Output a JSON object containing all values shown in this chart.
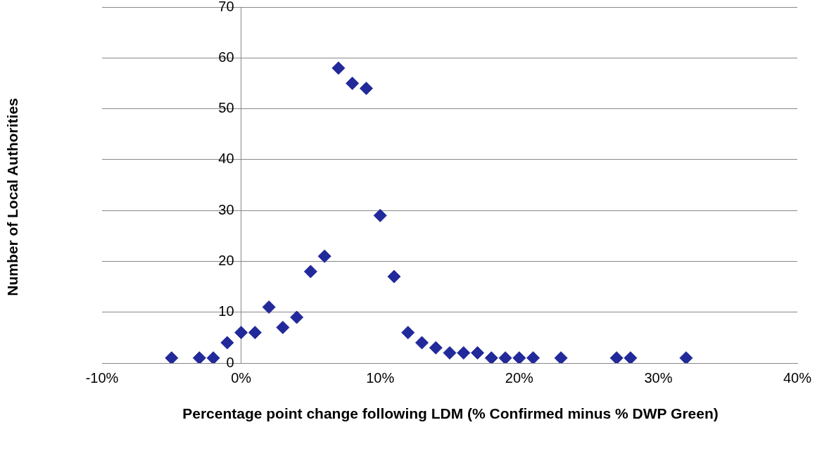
{
  "chart_data": {
    "type": "scatter",
    "xlabel": "Percentage point change following LDM (% Confirmed minus % DWP Green)",
    "ylabel": "Number of Local Authorities",
    "series": [
      {
        "color": "#22299a",
        "x": [
          -5,
          -3,
          -2,
          -1,
          0,
          1,
          2,
          3,
          4,
          5,
          6,
          7,
          8,
          9,
          10,
          11,
          12,
          13,
          14,
          15,
          16,
          17,
          18,
          19,
          20,
          21,
          23,
          27,
          28,
          32
        ],
        "values": [
          1,
          1,
          1,
          4,
          6,
          6,
          11,
          7,
          9,
          18,
          21,
          58,
          55,
          54,
          29,
          17,
          6,
          4,
          3,
          2,
          2,
          2,
          1,
          1,
          1,
          1,
          1,
          1,
          1,
          1
        ]
      }
    ],
    "xlim": [
      -10,
      40
    ],
    "xticks": [
      {
        "value": -10,
        "label": "-10%"
      },
      {
        "value": 0,
        "label": "0%"
      },
      {
        "value": 10,
        "label": "10%"
      },
      {
        "value": 20,
        "label": "20%"
      },
      {
        "value": 30,
        "label": "30%"
      },
      {
        "value": 40,
        "label": "40%"
      }
    ],
    "ylim": [
      0,
      70
    ],
    "yticks": [
      0,
      10,
      20,
      30,
      40,
      50,
      60,
      70
    ],
    "grid": "y",
    "marker": "diamond",
    "legend": false
  }
}
